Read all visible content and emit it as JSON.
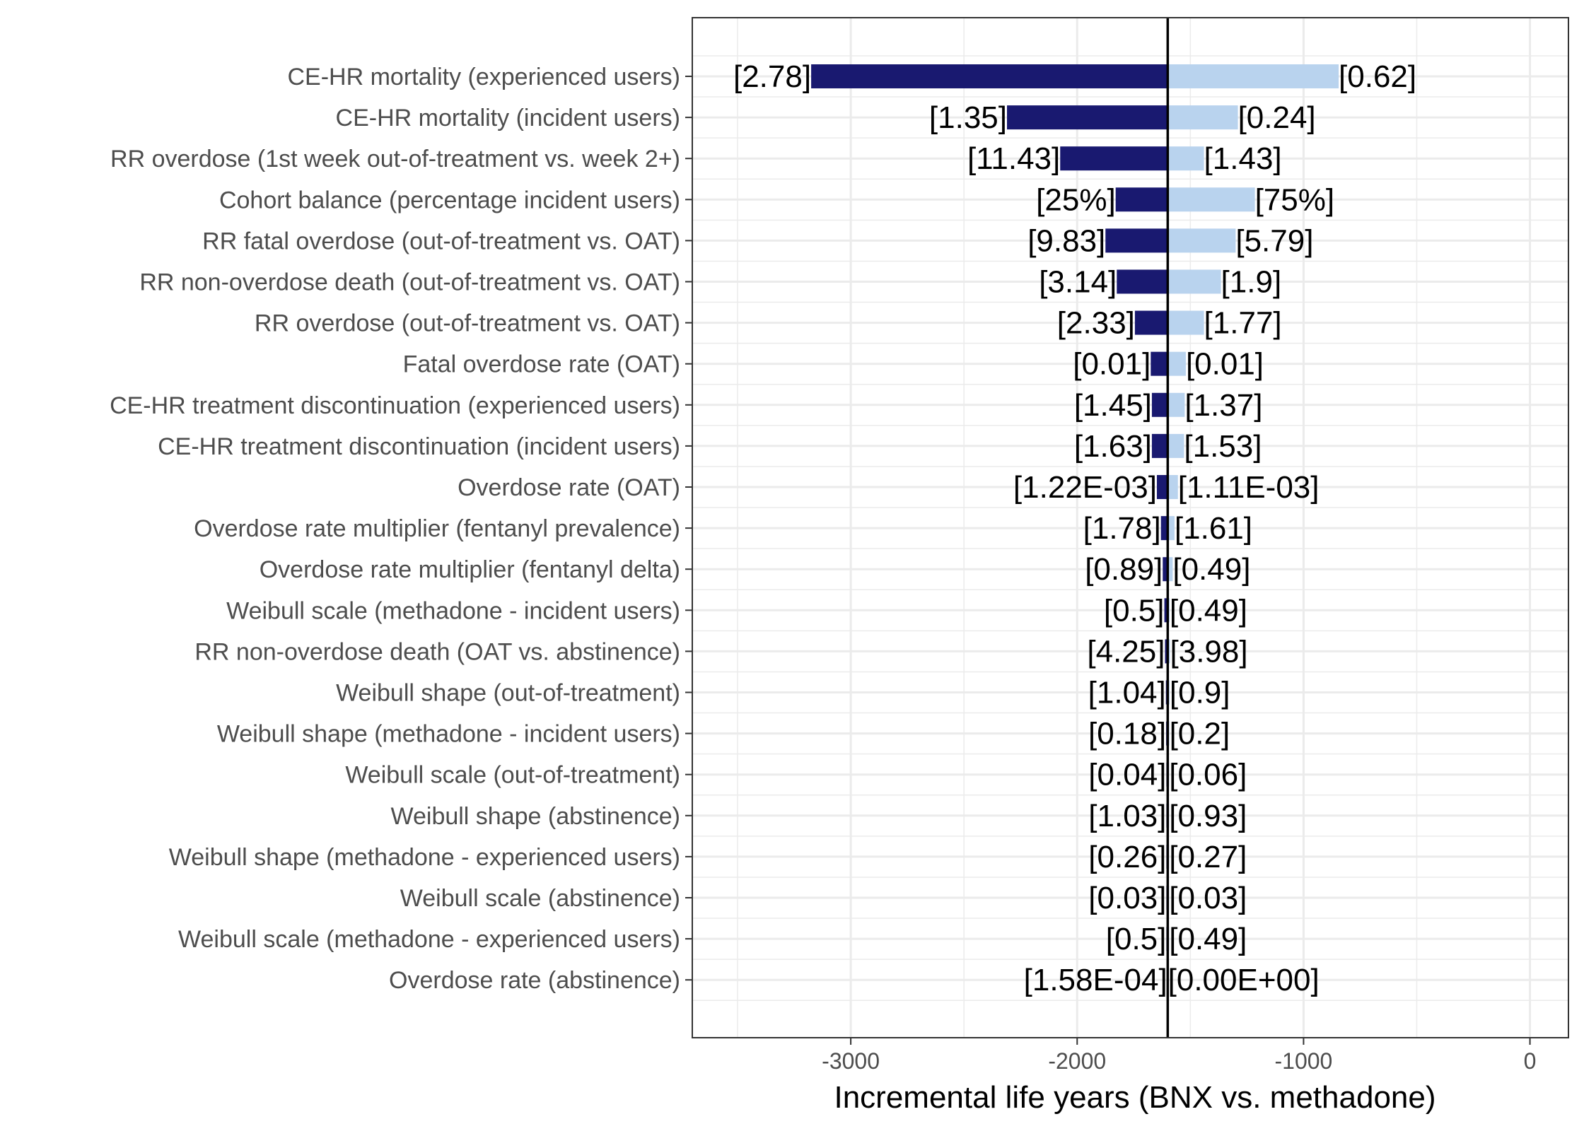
{
  "chart_data": {
    "type": "bar",
    "subtype": "tornado",
    "xlabel": "Incremental life years (BNX vs. methadone)",
    "xlim": [
      -3700,
      170
    ],
    "baseline": -1600,
    "x_ticks": [
      -3000,
      -2000,
      -1000,
      0
    ],
    "x_tick_labels": [
      "-3000",
      "-2000",
      "-1000",
      "0"
    ],
    "colors": {
      "low": "#191970",
      "high": "#b9d3ee",
      "baseline_line": "#000000",
      "grid": "#ebebeb",
      "border": "#333333"
    },
    "categories": [
      {
        "label": "CE-HR mortality (experienced users)",
        "low": -3175,
        "high": -845,
        "low_label": "[2.78]",
        "high_label": "[0.62]"
      },
      {
        "label": "CE-HR mortality (incident users)",
        "low": -2310,
        "high": -1290,
        "low_label": "[1.35]",
        "high_label": "[0.24]"
      },
      {
        "label": "RR overdose (1st week out-of-treatment vs. week 2+)",
        "low": -2075,
        "high": -1440,
        "low_label": "[11.43]",
        "high_label": "[1.43]"
      },
      {
        "label": "Cohort balance (percentage incident users)",
        "low": -1830,
        "high": -1215,
        "low_label": "[25%]",
        "high_label": "[75%]"
      },
      {
        "label": "RR fatal overdose (out-of-treatment vs. OAT)",
        "low": -1875,
        "high": -1300,
        "low_label": "[9.83]",
        "high_label": "[5.79]"
      },
      {
        "label": "RR non-overdose death (out-of-treatment vs. OAT)",
        "low": -1825,
        "high": -1365,
        "low_label": "[3.14]",
        "high_label": "[1.9]"
      },
      {
        "label": "RR overdose (out-of-treatment vs. OAT)",
        "low": -1745,
        "high": -1440,
        "low_label": "[2.33]",
        "high_label": "[1.77]"
      },
      {
        "label": "Fatal overdose rate (OAT)",
        "low": -1675,
        "high": -1520,
        "low_label": "[0.01]",
        "high_label": "[0.01]"
      },
      {
        "label": "CE-HR treatment discontinuation (experienced users)",
        "low": -1670,
        "high": -1525,
        "low_label": "[1.45]",
        "high_label": "[1.37]"
      },
      {
        "label": "CE-HR treatment discontinuation (incident users)",
        "low": -1670,
        "high": -1528,
        "low_label": "[1.63]",
        "high_label": "[1.53]"
      },
      {
        "label": "Overdose rate (OAT)",
        "low": -1648,
        "high": -1555,
        "low_label": "[1.22E-03]",
        "high_label": "[1.11E-03]"
      },
      {
        "label": "Overdose rate multiplier (fentanyl prevalence)",
        "low": -1630,
        "high": -1570,
        "low_label": "[1.78]",
        "high_label": "[1.61]"
      },
      {
        "label": "Overdose rate multiplier (fentanyl delta)",
        "low": -1622,
        "high": -1578,
        "low_label": "[0.89]",
        "high_label": "[0.49]"
      },
      {
        "label": "Weibull scale (methadone - incident users)",
        "low": -1615,
        "high": -1592,
        "low_label": "[0.5]",
        "high_label": "[0.49]"
      },
      {
        "label": "RR non-overdose death (OAT vs. abstinence)",
        "low": -1612,
        "high": -1590,
        "low_label": "[4.25]",
        "high_label": "[3.98]"
      },
      {
        "label": "Weibull shape (out-of-treatment)",
        "low": -1608,
        "high": -1592,
        "low_label": "[1.04]",
        "high_label": "[0.9]"
      },
      {
        "label": "Weibull shape (methadone - incident users)",
        "low": -1607,
        "high": -1593,
        "low_label": "[0.18]",
        "high_label": "[0.2]"
      },
      {
        "label": "Weibull scale (out-of-treatment)",
        "low": -1606,
        "high": -1594,
        "low_label": "[0.04]",
        "high_label": "[0.06]"
      },
      {
        "label": "Weibull shape (abstinence)",
        "low": -1606,
        "high": -1594,
        "low_label": "[1.03]",
        "high_label": "[0.93]"
      },
      {
        "label": "Weibull shape (methadone - experienced users)",
        "low": -1606,
        "high": -1594,
        "low_label": "[0.26]",
        "high_label": "[0.27]"
      },
      {
        "label": "Weibull scale (abstinence)",
        "low": -1606,
        "high": -1594,
        "low_label": "[0.03]",
        "high_label": "[0.03]"
      },
      {
        "label": "Weibull scale (methadone - experienced users)",
        "low": -1606,
        "high": -1594,
        "low_label": "[0.5]",
        "high_label": "[0.49]"
      },
      {
        "label": "Overdose rate (abstinence)",
        "low": -1602,
        "high": -1599,
        "low_label": "[1.58E-04]",
        "high_label": "[0.00E+00]"
      }
    ]
  }
}
